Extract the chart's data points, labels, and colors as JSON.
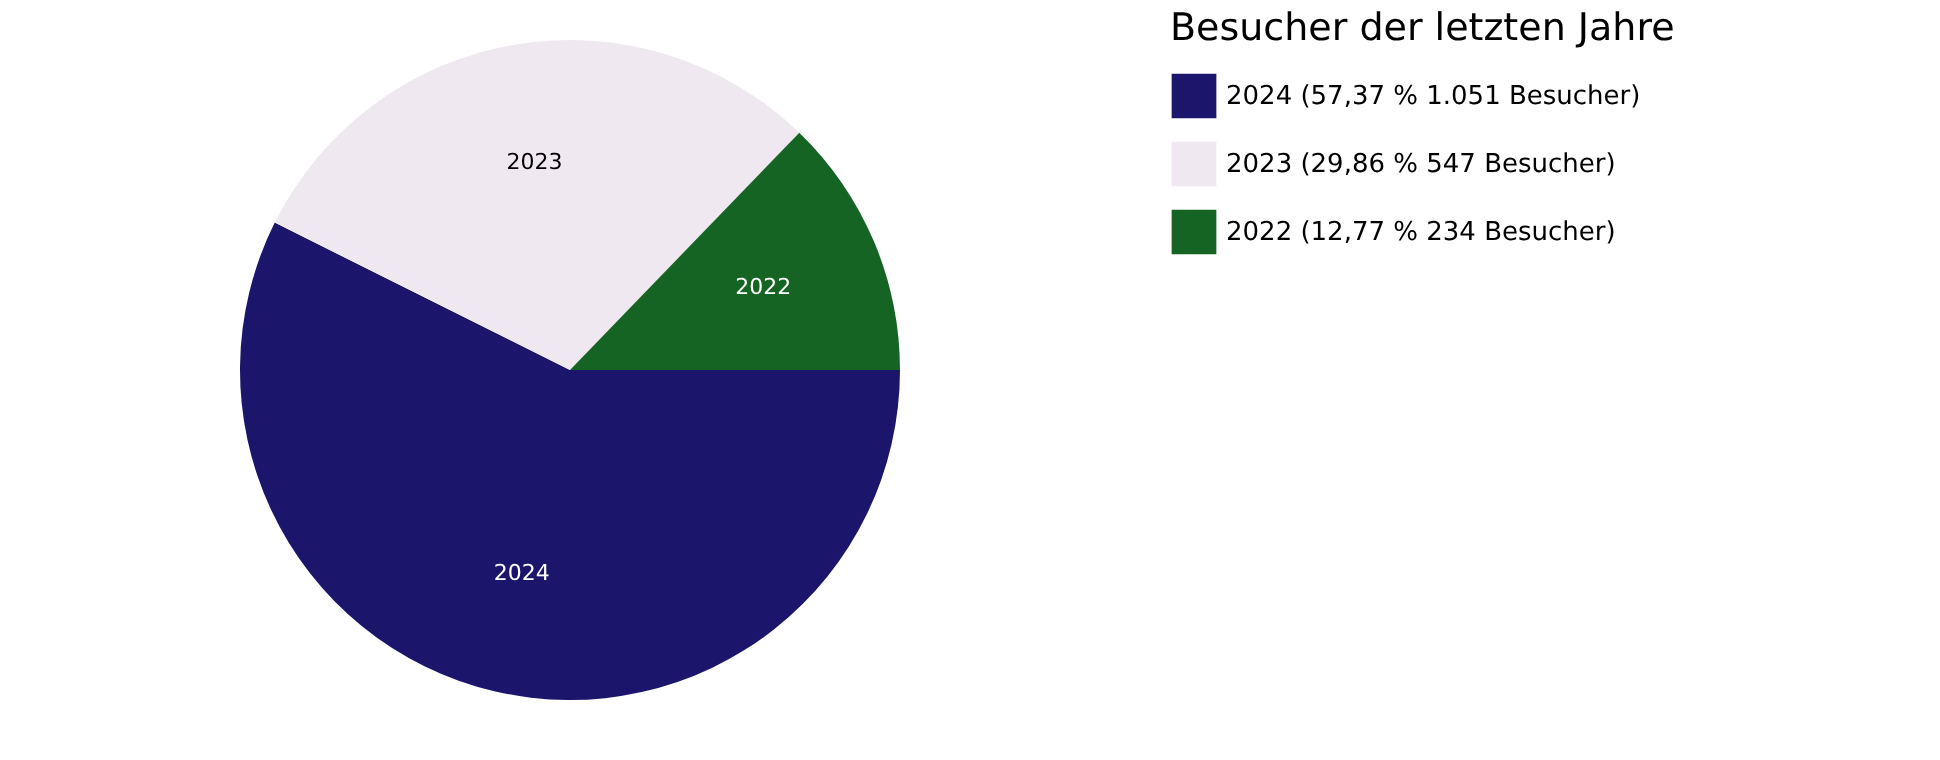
{
  "chart_data": {
    "type": "pie",
    "legend_title": "Besucher der letzten Jahre",
    "categories": [
      "2024 (57,37 % 1.051 Besucher)",
      "2023 (29,86 % 547 Besucher)",
      "2022 (12,77 % 234 Besucher)"
    ],
    "values": [
      1051,
      547,
      234
    ],
    "annotations": [
      "2024",
      "2023",
      "2022"
    ],
    "colors": [
      "#1b166b",
      "#f0e8f0",
      "#166423"
    ],
    "legend": "right"
  }
}
